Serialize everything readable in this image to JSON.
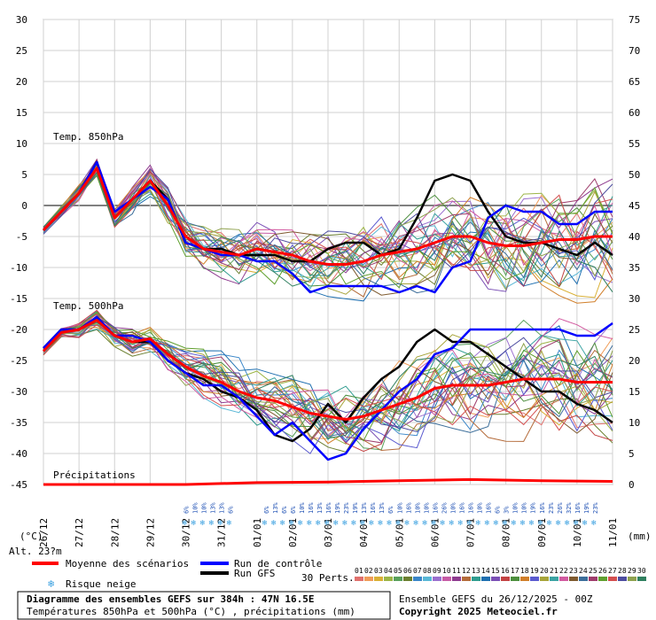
{
  "chart_data": {
    "type": "line",
    "title": "Diagramme des ensembles GEFS sur 384h : 47N 16.5E",
    "subtitle": "Températures 850hPa et 500hPa (°C) , précipitations (mm)",
    "run_info": "Ensemble GEFS du 26/12/2025 - 00Z",
    "copyright": "Copyright 2025 Meteociel.fr",
    "altitude_label": "Alt. 23?m",
    "unit_left": "(°C)",
    "unit_right": "(mm)",
    "panel_labels": {
      "t850": "Temp. 850hPa",
      "t500": "Temp. 500hPa",
      "precip": "Précipitations"
    },
    "ylim_left": [
      -45,
      30
    ],
    "ylim_right": [
      0,
      75
    ],
    "y_ticks_left": [
      30,
      25,
      20,
      15,
      10,
      5,
      0,
      -5,
      -10,
      -15,
      -20,
      -25,
      -30,
      -35,
      -40,
      -45
    ],
    "y_ticks_right": [
      75,
      70,
      65,
      60,
      55,
      50,
      45,
      40,
      35,
      30,
      25,
      20,
      15,
      10,
      5,
      0
    ],
    "x_ticks": [
      "26/12",
      "27/12",
      "28/12",
      "29/12",
      "30/12",
      "31/12",
      "01/01",
      "02/01",
      "03/01",
      "04/01",
      "05/01",
      "06/01",
      "07/01",
      "08/01",
      "09/01",
      "10/01",
      "11/01"
    ],
    "x_range_hours": [
      0,
      384
    ],
    "grid": true,
    "series_mean": {
      "name": "Moyenne des scénarios",
      "color": "#ff0000",
      "t850": [
        [
          0,
          -4
        ],
        [
          12,
          -1
        ],
        [
          24,
          2
        ],
        [
          36,
          6
        ],
        [
          48,
          -2
        ],
        [
          60,
          1
        ],
        [
          72,
          4
        ],
        [
          84,
          0
        ],
        [
          96,
          -5
        ],
        [
          108,
          -7
        ],
        [
          120,
          -7.5
        ],
        [
          132,
          -8
        ],
        [
          144,
          -7
        ],
        [
          156,
          -7.5
        ],
        [
          168,
          -8
        ],
        [
          180,
          -9
        ],
        [
          192,
          -9.5
        ],
        [
          204,
          -9.5
        ],
        [
          216,
          -9
        ],
        [
          228,
          -8
        ],
        [
          240,
          -7.5
        ],
        [
          252,
          -7
        ],
        [
          264,
          -6
        ],
        [
          276,
          -5
        ],
        [
          288,
          -5
        ],
        [
          300,
          -6
        ],
        [
          312,
          -6.5
        ],
        [
          324,
          -6.5
        ],
        [
          336,
          -6
        ],
        [
          348,
          -5.5
        ],
        [
          360,
          -5.5
        ],
        [
          372,
          -5
        ],
        [
          384,
          -5
        ]
      ],
      "t500": [
        [
          0,
          -23.5
        ],
        [
          12,
          -20.5
        ],
        [
          24,
          -20
        ],
        [
          36,
          -18.5
        ],
        [
          48,
          -21
        ],
        [
          60,
          -22
        ],
        [
          72,
          -21.5
        ],
        [
          84,
          -24
        ],
        [
          96,
          -26
        ],
        [
          108,
          -27.5
        ],
        [
          120,
          -28.5
        ],
        [
          132,
          -30
        ],
        [
          144,
          -31
        ],
        [
          156,
          -31.5
        ],
        [
          168,
          -32.5
        ],
        [
          180,
          -33.5
        ],
        [
          192,
          -34
        ],
        [
          204,
          -34.5
        ],
        [
          216,
          -34
        ],
        [
          228,
          -33
        ],
        [
          240,
          -32
        ],
        [
          252,
          -31
        ],
        [
          264,
          -29.5
        ],
        [
          276,
          -29
        ],
        [
          288,
          -29
        ],
        [
          300,
          -29
        ],
        [
          312,
          -28.5
        ],
        [
          324,
          -28
        ],
        [
          336,
          -28
        ],
        [
          348,
          -28
        ],
        [
          360,
          -28.5
        ],
        [
          372,
          -28.5
        ],
        [
          384,
          -28.5
        ]
      ],
      "precip": [
        [
          0,
          0
        ],
        [
          96,
          0
        ],
        [
          144,
          0.3
        ],
        [
          192,
          0.4
        ],
        [
          240,
          0.6
        ],
        [
          288,
          0.8
        ],
        [
          336,
          0.6
        ],
        [
          384,
          0.5
        ]
      ]
    },
    "series_control": {
      "name": "Run de contrôle",
      "color": "#0000ff",
      "t850": [
        [
          0,
          -4
        ],
        [
          12,
          -1
        ],
        [
          24,
          2
        ],
        [
          36,
          7
        ],
        [
          48,
          -1
        ],
        [
          60,
          1
        ],
        [
          72,
          3
        ],
        [
          84,
          1
        ],
        [
          96,
          -6
        ],
        [
          108,
          -7
        ],
        [
          120,
          -8
        ],
        [
          132,
          -8
        ],
        [
          144,
          -9
        ],
        [
          156,
          -9
        ],
        [
          168,
          -11
        ],
        [
          180,
          -14
        ],
        [
          192,
          -13
        ],
        [
          204,
          -13
        ],
        [
          216,
          -13
        ],
        [
          228,
          -13
        ],
        [
          240,
          -14
        ],
        [
          252,
          -13
        ],
        [
          264,
          -14
        ],
        [
          276,
          -10
        ],
        [
          288,
          -9
        ],
        [
          300,
          -2
        ],
        [
          312,
          0
        ],
        [
          324,
          -1
        ],
        [
          336,
          -1
        ],
        [
          348,
          -3
        ],
        [
          360,
          -3
        ],
        [
          372,
          -1
        ],
        [
          384,
          -1
        ]
      ],
      "t500": [
        [
          0,
          -23
        ],
        [
          12,
          -20
        ],
        [
          24,
          -20
        ],
        [
          36,
          -18
        ],
        [
          48,
          -21
        ],
        [
          60,
          -21
        ],
        [
          72,
          -22
        ],
        [
          84,
          -25
        ],
        [
          96,
          -27
        ],
        [
          108,
          -29
        ],
        [
          120,
          -29
        ],
        [
          132,
          -31
        ],
        [
          144,
          -34
        ],
        [
          156,
          -37
        ],
        [
          168,
          -35
        ],
        [
          180,
          -38
        ],
        [
          192,
          -41
        ],
        [
          204,
          -40
        ],
        [
          216,
          -36
        ],
        [
          228,
          -33
        ],
        [
          240,
          -30
        ],
        [
          252,
          -28
        ],
        [
          264,
          -24
        ],
        [
          276,
          -23
        ],
        [
          288,
          -20
        ],
        [
          300,
          -20
        ],
        [
          312,
          -20
        ],
        [
          324,
          -20
        ],
        [
          336,
          -20
        ],
        [
          348,
          -20
        ],
        [
          360,
          -21
        ],
        [
          372,
          -21
        ],
        [
          384,
          -19
        ]
      ]
    },
    "series_gfs": {
      "name": "Run GFS",
      "color": "#000000",
      "t850": [
        [
          0,
          -4
        ],
        [
          12,
          -1
        ],
        [
          24,
          2
        ],
        [
          36,
          7
        ],
        [
          48,
          -2
        ],
        [
          60,
          1
        ],
        [
          72,
          4
        ],
        [
          84,
          1
        ],
        [
          96,
          -6
        ],
        [
          108,
          -7
        ],
        [
          120,
          -7
        ],
        [
          132,
          -8
        ],
        [
          144,
          -8
        ],
        [
          156,
          -8
        ],
        [
          168,
          -9
        ],
        [
          180,
          -9
        ],
        [
          192,
          -7
        ],
        [
          204,
          -6
        ],
        [
          216,
          -6
        ],
        [
          228,
          -8
        ],
        [
          240,
          -7
        ],
        [
          252,
          -2
        ],
        [
          264,
          4
        ],
        [
          276,
          5
        ],
        [
          288,
          4
        ],
        [
          300,
          -1
        ],
        [
          312,
          -5
        ],
        [
          324,
          -6
        ],
        [
          336,
          -6
        ],
        [
          348,
          -7
        ],
        [
          360,
          -8
        ],
        [
          372,
          -6
        ],
        [
          384,
          -8
        ]
      ],
      "t500": [
        [
          0,
          -23
        ],
        [
          12,
          -20
        ],
        [
          24,
          -20
        ],
        [
          36,
          -18
        ],
        [
          48,
          -21
        ],
        [
          60,
          -22
        ],
        [
          72,
          -22
        ],
        [
          84,
          -25
        ],
        [
          96,
          -27
        ],
        [
          108,
          -28
        ],
        [
          120,
          -30
        ],
        [
          132,
          -31
        ],
        [
          144,
          -33
        ],
        [
          156,
          -37
        ],
        [
          168,
          -38
        ],
        [
          180,
          -36
        ],
        [
          192,
          -32
        ],
        [
          204,
          -35
        ],
        [
          216,
          -31
        ],
        [
          228,
          -28
        ],
        [
          240,
          -26
        ],
        [
          252,
          -22
        ],
        [
          264,
          -20
        ],
        [
          276,
          -22
        ],
        [
          288,
          -22
        ],
        [
          300,
          -24
        ],
        [
          312,
          -26
        ],
        [
          324,
          -28
        ],
        [
          336,
          -30
        ],
        [
          348,
          -30
        ],
        [
          360,
          -32
        ],
        [
          372,
          -33
        ],
        [
          384,
          -35
        ]
      ]
    },
    "perturbation_count": 30,
    "perturbation_colors": [
      "#e0706c",
      "#f09c58",
      "#d9b035",
      "#9cb546",
      "#59a05b",
      "#6b7f30",
      "#3a86c9",
      "#58b7d6",
      "#9a6fcf",
      "#c75ca6",
      "#8e3b8f",
      "#b46b3a",
      "#2f9c8f",
      "#1e6fb0",
      "#7a4fb5",
      "#c34343",
      "#4d8f3e",
      "#d17f2a",
      "#5a5acf",
      "#a7a43a",
      "#3ba3a3",
      "#d25aa0",
      "#7e5a2f",
      "#3c6e9a",
      "#9e3c6b",
      "#5f9f2f",
      "#d44f4f",
      "#4d4d9f",
      "#8fa24f",
      "#2f7f5f"
    ],
    "perturbation_ids": [
      "01",
      "02",
      "03",
      "04",
      "05",
      "06",
      "07",
      "08",
      "09",
      "10",
      "11",
      "12",
      "13",
      "14",
      "15",
      "16",
      "17",
      "18",
      "19",
      "20",
      "21",
      "22",
      "23",
      "24",
      "25",
      "26",
      "27",
      "28",
      "29",
      "30"
    ],
    "snow_risk_percent": {
      "group1": [
        "6%",
        "10%",
        "10%",
        "13%",
        "13%",
        "6%"
      ],
      "group2": [
        "6%",
        "13%",
        "6%",
        "6%",
        "10%",
        "16%",
        "13%",
        "16%",
        "19%",
        "23%",
        "19%",
        "13%",
        "16%",
        "13%",
        "6%",
        "10%",
        "16%",
        "10%",
        "10%",
        "16%",
        "26%",
        "10%",
        "16%",
        "16%",
        "10%",
        "16%",
        "6%",
        "3%",
        "10%",
        "10%",
        "19%",
        "16%",
        "23%",
        "26%",
        "32%",
        "16%",
        "19%",
        "23%"
      ]
    }
  },
  "legend": {
    "mean_label": "Moyenne des scénarios",
    "control_label": "Run de contrôle",
    "gfs_label": "Run GFS",
    "snow_label": "Risque neige",
    "perts_label": "30 Perts."
  }
}
